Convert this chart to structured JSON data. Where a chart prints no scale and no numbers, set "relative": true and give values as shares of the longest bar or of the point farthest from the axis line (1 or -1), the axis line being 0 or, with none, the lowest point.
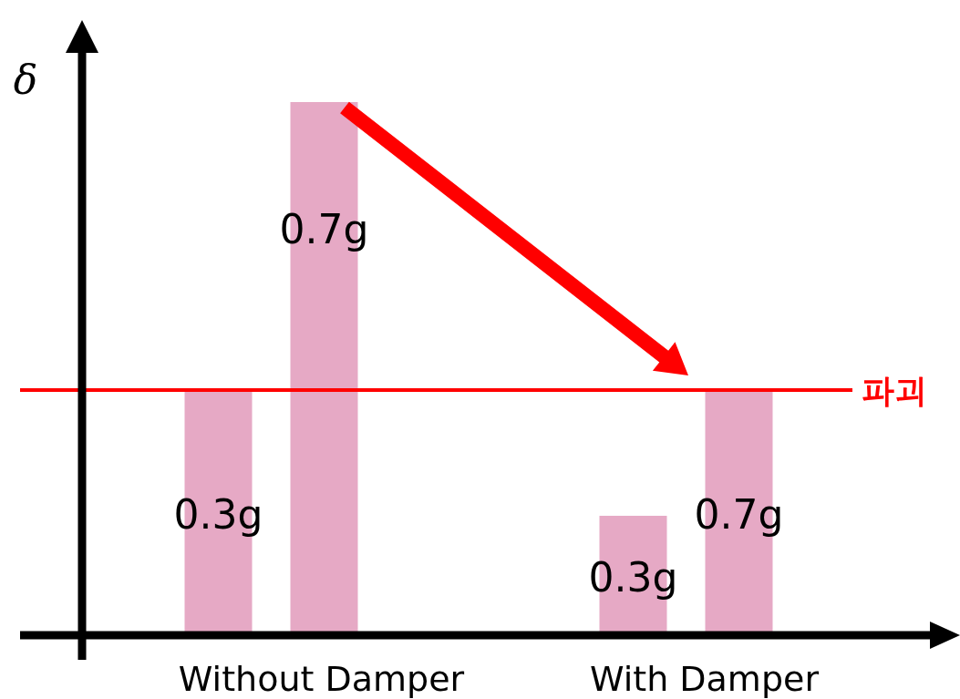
{
  "chart_data": {
    "type": "bar",
    "ylabel": "δ",
    "categories": [
      "Without Damper",
      "With Damper"
    ],
    "relative": true,
    "series": [
      {
        "name": "0.3g",
        "color": "#e6a9c5",
        "values": [
          0.46,
          0.224
        ]
      },
      {
        "name": "0.7g",
        "color": "#e6a9c5",
        "values": [
          1,
          0.46
        ]
      }
    ],
    "ref_lines": [
      {
        "axis": "y",
        "value": 0.46,
        "label": "파괴",
        "color": "#ff0000"
      }
    ]
  }
}
